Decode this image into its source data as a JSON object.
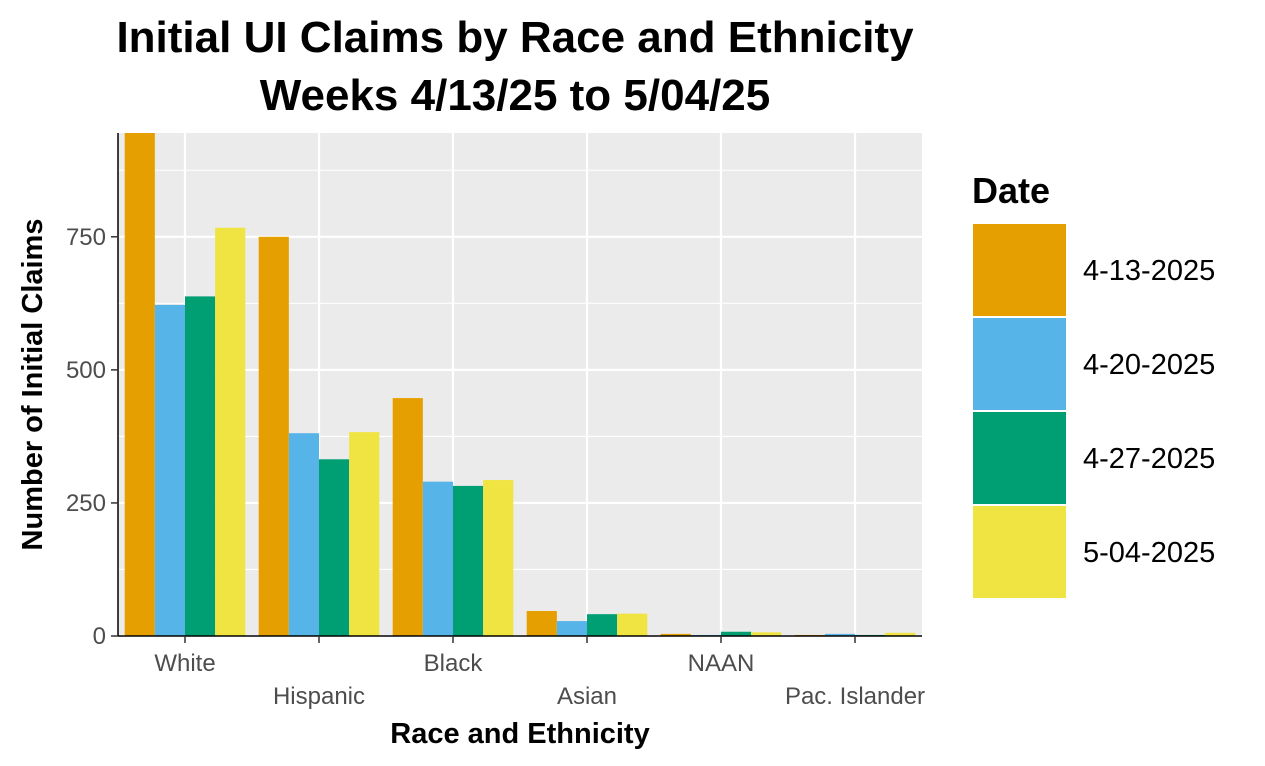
{
  "chart_data": {
    "type": "bar",
    "title": "Initial UI Claims by Race and Ethnicity",
    "subtitle": "Weeks 4/13/25 to 5/04/25",
    "xlabel": "Race and Ethnicity",
    "ylabel": "Number of Initial Claims",
    "categories": [
      "White",
      "Hispanic",
      "Black",
      "Asian",
      "NAAN",
      "Pac. Islander"
    ],
    "ylim": [
      0,
      945
    ],
    "yticks": [
      0,
      250,
      500,
      750
    ],
    "grid": true,
    "legend": {
      "title": "Date",
      "placement": "right"
    },
    "series": [
      {
        "name": "4-13-2025",
        "color": "#E69F00",
        "values": [
          945,
          750,
          447,
          47,
          4,
          2
        ]
      },
      {
        "name": "4-20-2025",
        "color": "#56B4E9",
        "values": [
          622,
          381,
          290,
          28,
          2,
          4
        ]
      },
      {
        "name": "4-27-2025",
        "color": "#009E73",
        "values": [
          638,
          332,
          282,
          41,
          8,
          2
        ]
      },
      {
        "name": "5-04-2025",
        "color": "#F0E442",
        "values": [
          767,
          383,
          293,
          42,
          7,
          6
        ]
      }
    ]
  }
}
